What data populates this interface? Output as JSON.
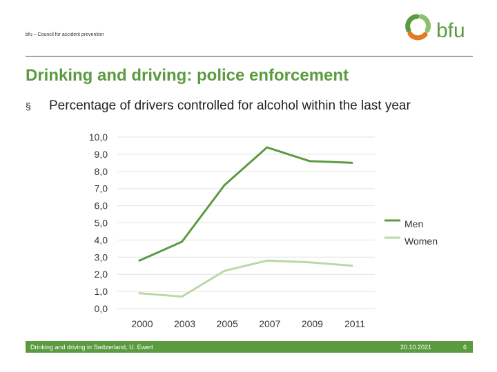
{
  "header": {
    "org_text": "bfu – Council for accident prevention",
    "logo_text": "bfu",
    "logo_icon": "bfu-ring-logo-icon",
    "brand_color": "#5b9b3f",
    "accent_color": "#e57b1f"
  },
  "slide": {
    "title": "Drinking and driving: police enforcement",
    "bullet_mark": "§",
    "bullet_text": "Percentage of drivers controlled for alcohol within the last year"
  },
  "chart_data": {
    "type": "line",
    "x": [
      "2000",
      "2003",
      "2005",
      "2007",
      "2009",
      "2011"
    ],
    "series": [
      {
        "name": "Men",
        "values": [
          2.8,
          3.9,
          7.2,
          9.4,
          8.6,
          8.5
        ],
        "color": "#5b9b3f"
      },
      {
        "name": "Women",
        "values": [
          0.9,
          0.7,
          2.2,
          2.8,
          2.7,
          2.5
        ],
        "color": "#b8d9a8"
      }
    ],
    "ylim": [
      0,
      10
    ],
    "yticks": [
      "0,0",
      "1,0",
      "2,0",
      "3,0",
      "4,0",
      "5,0",
      "6,0",
      "7,0",
      "8,0",
      "9,0",
      "10,0"
    ],
    "grid": true,
    "legend": "right"
  },
  "footer": {
    "left_text": "Drinking and driving in Switzerland, U. Ewert",
    "date": "20.10.2021",
    "page": "6"
  }
}
